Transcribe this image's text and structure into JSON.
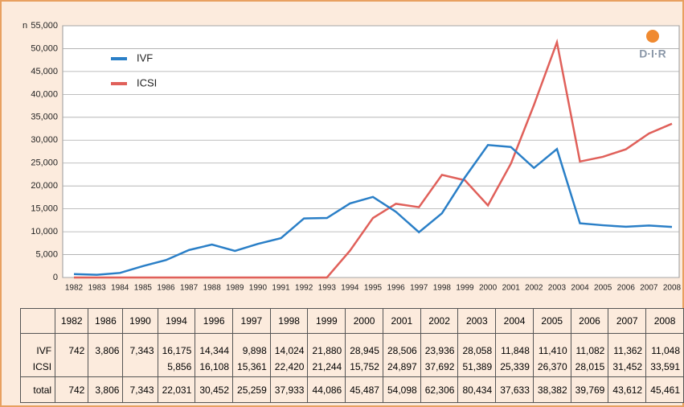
{
  "chart_data": {
    "type": "line",
    "ylabel": "n",
    "x": [
      1982,
      1983,
      1984,
      1985,
      1986,
      1987,
      1988,
      1989,
      1990,
      1991,
      1992,
      1993,
      1994,
      1995,
      1996,
      1997,
      1998,
      1999,
      2000,
      2001,
      2002,
      2003,
      2004,
      2005,
      2006,
      2007,
      2008
    ],
    "xlim": [
      1982,
      2008
    ],
    "ylim": [
      0,
      55000
    ],
    "yticks": [
      0,
      {
        "value": 5000,
        "label": "5,000"
      },
      {
        "value": 10000,
        "label": "10,000"
      },
      {
        "value": 15000,
        "label": "15,000"
      },
      {
        "value": 20000,
        "label": "20,000"
      },
      {
        "value": 25000,
        "label": "25,000"
      },
      {
        "value": 30000,
        "label": "30,000"
      },
      {
        "value": 35000,
        "label": "35,000"
      },
      {
        "value": 40000,
        "label": "40,000"
      },
      {
        "value": 45000,
        "label": "45,000"
      },
      {
        "value": 50000,
        "label": "50,000"
      },
      {
        "value": 55000,
        "label": "55,000"
      }
    ],
    "grid": true,
    "logo": "D·I·R",
    "series": [
      {
        "name": "IVF",
        "color": "#2a7fc7",
        "values": [
          742,
          600,
          1000,
          2500,
          3806,
          6000,
          7200,
          5800,
          7343,
          8600,
          12900,
          13000,
          16175,
          17600,
          14344,
          9898,
          14024,
          21880,
          28945,
          28506,
          23936,
          28058,
          11848,
          11410,
          11082,
          11362,
          11048
        ]
      },
      {
        "name": "ICSI",
        "color": "#e0605a",
        "values": [
          0,
          0,
          0,
          0,
          0,
          0,
          0,
          0,
          0,
          0,
          0,
          0,
          5856,
          13000,
          16108,
          15361,
          22420,
          21244,
          15752,
          24897,
          37692,
          51389,
          25339,
          26370,
          28015,
          31452,
          33591
        ]
      }
    ]
  },
  "table": {
    "header": [
      null,
      "1982",
      "1986",
      "1990",
      "1994",
      "1996",
      "1997",
      "1998",
      "1999",
      "2000",
      "2001",
      "2002",
      "2003",
      "2004",
      "2005",
      "2006",
      "2007",
      "2008"
    ],
    "rows": [
      [
        "IVF",
        "742",
        "3,806",
        "7,343",
        "16,175",
        "14,344",
        "9,898",
        "14,024",
        "21,880",
        "28,945",
        "28,506",
        "23,936",
        "28,058",
        "11,848",
        "11,410",
        "11,082",
        "11,362",
        "11,048"
      ],
      [
        "ICSI",
        null,
        null,
        null,
        "5,856",
        "16,108",
        "15,361",
        "22,420",
        "21,244",
        "15,752",
        "24,897",
        "37,692",
        "51,389",
        "25,339",
        "26,370",
        "28,015",
        "31,452",
        "33,591"
      ],
      [
        "total",
        "742",
        "3,806",
        "7,343",
        "22,031",
        "30,452",
        "25,259",
        "37,933",
        "44,086",
        "45,487",
        "54,098",
        "62,306",
        "80,434",
        "37,633",
        "38,382",
        "39,769",
        "43,612",
        "45,461"
      ]
    ]
  }
}
